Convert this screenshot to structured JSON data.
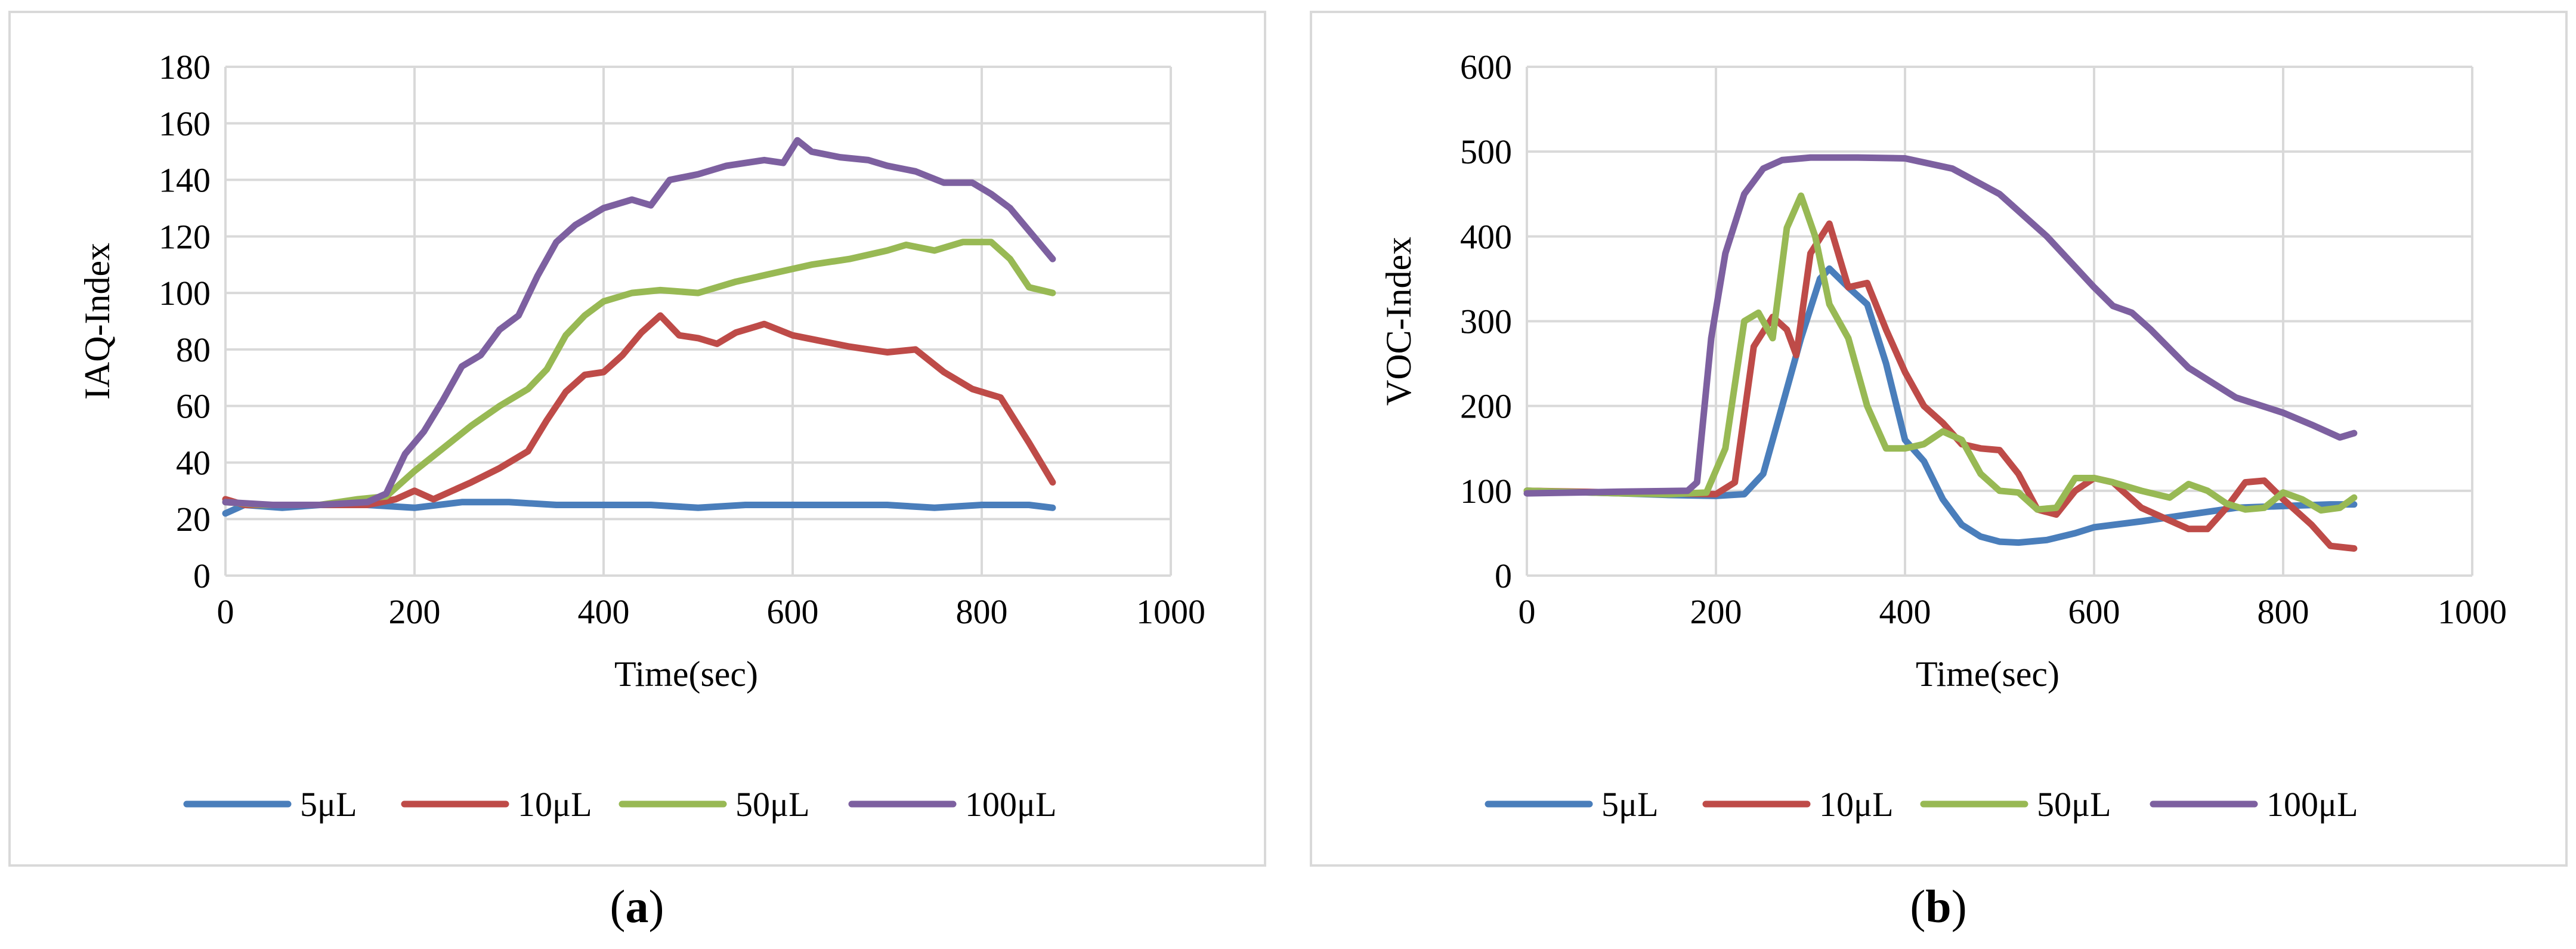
{
  "chart_data": [
    {
      "type": "line",
      "panel_label": "a",
      "title": "",
      "xlabel": "Time(sec)",
      "ylabel": "IAQ-Index",
      "xlim": [
        0,
        1000
      ],
      "ylim": [
        0,
        180
      ],
      "xticks": [
        0,
        200,
        400,
        600,
        800,
        1000
      ],
      "yticks": [
        0,
        20,
        40,
        60,
        80,
        100,
        120,
        140,
        160,
        180
      ],
      "grid": true,
      "legend_position": "bottom",
      "series": [
        {
          "name": "5μL",
          "color": "#4a7ebb",
          "points": [
            [
              0,
              22
            ],
            [
              20,
              25
            ],
            [
              60,
              24
            ],
            [
              100,
              25
            ],
            [
              150,
              25
            ],
            [
              200,
              24
            ],
            [
              250,
              26
            ],
            [
              300,
              26
            ],
            [
              350,
              25
            ],
            [
              400,
              25
            ],
            [
              450,
              25
            ],
            [
              500,
              24
            ],
            [
              550,
              25
            ],
            [
              600,
              25
            ],
            [
              650,
              25
            ],
            [
              700,
              25
            ],
            [
              750,
              24
            ],
            [
              800,
              25
            ],
            [
              850,
              25
            ],
            [
              875,
              24
            ]
          ]
        },
        {
          "name": "10μL",
          "color": "#be4b48",
          "points": [
            [
              0,
              27
            ],
            [
              20,
              25
            ],
            [
              60,
              25
            ],
            [
              100,
              25
            ],
            [
              150,
              25
            ],
            [
              180,
              27
            ],
            [
              200,
              30
            ],
            [
              220,
              27
            ],
            [
              260,
              33
            ],
            [
              290,
              38
            ],
            [
              320,
              44
            ],
            [
              340,
              55
            ],
            [
              360,
              65
            ],
            [
              380,
              71
            ],
            [
              400,
              72
            ],
            [
              420,
              78
            ],
            [
              440,
              86
            ],
            [
              460,
              92
            ],
            [
              480,
              85
            ],
            [
              500,
              84
            ],
            [
              520,
              82
            ],
            [
              540,
              86
            ],
            [
              570,
              89
            ],
            [
              600,
              85
            ],
            [
              630,
              83
            ],
            [
              660,
              81
            ],
            [
              700,
              79
            ],
            [
              730,
              80
            ],
            [
              760,
              72
            ],
            [
              790,
              66
            ],
            [
              820,
              63
            ],
            [
              850,
              47
            ],
            [
              875,
              33
            ]
          ]
        },
        {
          "name": "50μL",
          "color": "#98b954",
          "points": [
            [
              0,
              26
            ],
            [
              40,
              25
            ],
            [
              100,
              25
            ],
            [
              140,
              27
            ],
            [
              170,
              28
            ],
            [
              200,
              37
            ],
            [
              230,
              45
            ],
            [
              260,
              53
            ],
            [
              290,
              60
            ],
            [
              320,
              66
            ],
            [
              340,
              73
            ],
            [
              360,
              85
            ],
            [
              380,
              92
            ],
            [
              400,
              97
            ],
            [
              430,
              100
            ],
            [
              460,
              101
            ],
            [
              500,
              100
            ],
            [
              540,
              104
            ],
            [
              580,
              107
            ],
            [
              620,
              110
            ],
            [
              660,
              112
            ],
            [
              700,
              115
            ],
            [
              720,
              117
            ],
            [
              750,
              115
            ],
            [
              780,
              118
            ],
            [
              810,
              118
            ],
            [
              830,
              112
            ],
            [
              850,
              102
            ],
            [
              875,
              100
            ]
          ]
        },
        {
          "name": "100μL",
          "color": "#7d60a0",
          "points": [
            [
              0,
              26
            ],
            [
              50,
              25
            ],
            [
              100,
              25
            ],
            [
              150,
              26
            ],
            [
              170,
              29
            ],
            [
              190,
              43
            ],
            [
              210,
              51
            ],
            [
              230,
              62
            ],
            [
              250,
              74
            ],
            [
              270,
              78
            ],
            [
              290,
              87
            ],
            [
              310,
              92
            ],
            [
              330,
              106
            ],
            [
              350,
              118
            ],
            [
              370,
              124
            ],
            [
              400,
              130
            ],
            [
              430,
              133
            ],
            [
              450,
              131
            ],
            [
              470,
              140
            ],
            [
              500,
              142
            ],
            [
              530,
              145
            ],
            [
              570,
              147
            ],
            [
              590,
              146
            ],
            [
              605,
              154
            ],
            [
              620,
              150
            ],
            [
              650,
              148
            ],
            [
              680,
              147
            ],
            [
              700,
              145
            ],
            [
              730,
              143
            ],
            [
              760,
              139
            ],
            [
              790,
              139
            ],
            [
              810,
              135
            ],
            [
              830,
              130
            ],
            [
              850,
              122
            ],
            [
              875,
              112
            ]
          ]
        }
      ]
    },
    {
      "type": "line",
      "panel_label": "b",
      "title": "",
      "xlabel": "Time(sec)",
      "ylabel": "VOC-Index",
      "xlim": [
        0,
        1000
      ],
      "ylim": [
        0,
        600
      ],
      "xticks": [
        0,
        200,
        400,
        600,
        800,
        1000
      ],
      "yticks": [
        0,
        100,
        200,
        300,
        400,
        500,
        600
      ],
      "grid": true,
      "legend_position": "bottom",
      "series": [
        {
          "name": "5μL",
          "color": "#4a7ebb",
          "points": [
            [
              0,
              100
            ],
            [
              100,
              97
            ],
            [
              150,
              95
            ],
            [
              200,
              94
            ],
            [
              230,
              96
            ],
            [
              250,
              120
            ],
            [
              270,
              200
            ],
            [
              290,
              280
            ],
            [
              310,
              350
            ],
            [
              320,
              362
            ],
            [
              340,
              340
            ],
            [
              360,
              320
            ],
            [
              380,
              250
            ],
            [
              400,
              160
            ],
            [
              420,
              135
            ],
            [
              440,
              90
            ],
            [
              460,
              60
            ],
            [
              480,
              46
            ],
            [
              500,
              40
            ],
            [
              520,
              39
            ],
            [
              550,
              42
            ],
            [
              580,
              50
            ],
            [
              600,
              57
            ],
            [
              650,
              64
            ],
            [
              700,
              72
            ],
            [
              750,
              80
            ],
            [
              800,
              82
            ],
            [
              850,
              84
            ],
            [
              875,
              84
            ]
          ]
        },
        {
          "name": "10μL",
          "color": "#be4b48",
          "points": [
            [
              0,
              100
            ],
            [
              100,
              98
            ],
            [
              150,
              97
            ],
            [
              200,
              96
            ],
            [
              220,
              110
            ],
            [
              240,
              270
            ],
            [
              260,
              305
            ],
            [
              275,
              290
            ],
            [
              285,
              260
            ],
            [
              300,
              380
            ],
            [
              320,
              415
            ],
            [
              340,
              340
            ],
            [
              360,
              345
            ],
            [
              380,
              290
            ],
            [
              400,
              240
            ],
            [
              420,
              200
            ],
            [
              440,
              180
            ],
            [
              460,
              155
            ],
            [
              480,
              150
            ],
            [
              500,
              148
            ],
            [
              520,
              120
            ],
            [
              540,
              78
            ],
            [
              560,
              72
            ],
            [
              580,
              100
            ],
            [
              600,
              115
            ],
            [
              620,
              110
            ],
            [
              650,
              80
            ],
            [
              680,
              65
            ],
            [
              700,
              55
            ],
            [
              720,
              55
            ],
            [
              740,
              80
            ],
            [
              760,
              110
            ],
            [
              780,
              112
            ],
            [
              800,
              90
            ],
            [
              830,
              60
            ],
            [
              850,
              35
            ],
            [
              875,
              32
            ]
          ]
        },
        {
          "name": "50μL",
          "color": "#98b954",
          "points": [
            [
              0,
              100
            ],
            [
              100,
              97
            ],
            [
              150,
              96
            ],
            [
              190,
              98
            ],
            [
              210,
              150
            ],
            [
              230,
              300
            ],
            [
              245,
              310
            ],
            [
              260,
              280
            ],
            [
              275,
              410
            ],
            [
              290,
              448
            ],
            [
              305,
              400
            ],
            [
              320,
              320
            ],
            [
              340,
              280
            ],
            [
              360,
              200
            ],
            [
              380,
              150
            ],
            [
              400,
              150
            ],
            [
              420,
              155
            ],
            [
              440,
              170
            ],
            [
              460,
              160
            ],
            [
              480,
              120
            ],
            [
              500,
              100
            ],
            [
              520,
              98
            ],
            [
              540,
              78
            ],
            [
              560,
              80
            ],
            [
              580,
              115
            ],
            [
              600,
              115
            ],
            [
              620,
              110
            ],
            [
              650,
              100
            ],
            [
              680,
              92
            ],
            [
              700,
              108
            ],
            [
              720,
              100
            ],
            [
              740,
              85
            ],
            [
              760,
              78
            ],
            [
              780,
              80
            ],
            [
              800,
              98
            ],
            [
              820,
              90
            ],
            [
              840,
              77
            ],
            [
              860,
              80
            ],
            [
              875,
              92
            ]
          ]
        },
        {
          "name": "100μL",
          "color": "#7d60a0",
          "points": [
            [
              0,
              97
            ],
            [
              100,
              99
            ],
            [
              170,
              100
            ],
            [
              180,
              110
            ],
            [
              195,
              280
            ],
            [
              210,
              380
            ],
            [
              230,
              450
            ],
            [
              250,
              480
            ],
            [
              270,
              490
            ],
            [
              300,
              493
            ],
            [
              350,
              493
            ],
            [
              400,
              492
            ],
            [
              450,
              480
            ],
            [
              500,
              450
            ],
            [
              550,
              400
            ],
            [
              600,
              340
            ],
            [
              620,
              318
            ],
            [
              640,
              310
            ],
            [
              660,
              290
            ],
            [
              700,
              245
            ],
            [
              750,
              210
            ],
            [
              800,
              192
            ],
            [
              830,
              178
            ],
            [
              860,
              163
            ],
            [
              875,
              168
            ]
          ]
        }
      ]
    }
  ],
  "captions": {
    "a": "a",
    "b": "b"
  }
}
